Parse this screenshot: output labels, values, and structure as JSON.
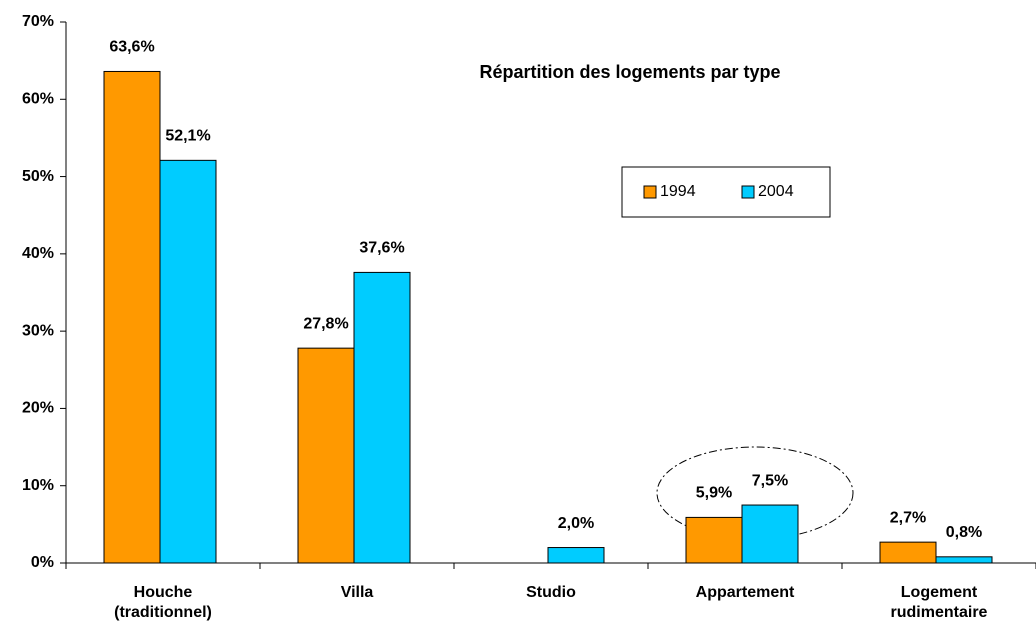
{
  "chart_data": {
    "type": "bar",
    "title": "Répartition des logements par type",
    "categories": [
      "Houche (traditionnel)",
      "Villa",
      "Studio",
      "Appartement",
      "Logement rudimentaire"
    ],
    "series": [
      {
        "name": "1994",
        "color": "#ff9900",
        "values": [
          63.6,
          27.8,
          null,
          5.9,
          2.7
        ],
        "value_labels": [
          "63,6%",
          "27,8%",
          null,
          "5,9%",
          "2,7%"
        ]
      },
      {
        "name": "2004",
        "color": "#00ccff",
        "values": [
          52.1,
          37.6,
          2.0,
          7.5,
          0.8
        ],
        "value_labels": [
          "52,1%",
          "37,6%",
          "2,0%",
          "7,5%",
          "0,8%"
        ]
      }
    ],
    "ylim": [
      0,
      70
    ],
    "yticks": [
      {
        "value": 0,
        "label": "0%"
      },
      {
        "value": 10,
        "label": "10%"
      },
      {
        "value": 20,
        "label": "20%"
      },
      {
        "value": 30,
        "label": "30%"
      },
      {
        "value": 40,
        "label": "40%"
      },
      {
        "value": 50,
        "label": "50%"
      },
      {
        "value": 60,
        "label": "60%"
      },
      {
        "value": 70,
        "label": "70%"
      }
    ],
    "grid": false,
    "legend": "upper right"
  }
}
